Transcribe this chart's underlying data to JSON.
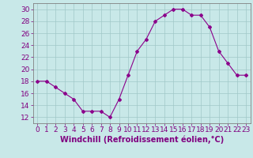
{
  "x": [
    0,
    1,
    2,
    3,
    4,
    5,
    6,
    7,
    8,
    9,
    10,
    11,
    12,
    13,
    14,
    15,
    16,
    17,
    18,
    19,
    20,
    21,
    22,
    23
  ],
  "y": [
    18,
    18,
    17,
    16,
    15,
    13,
    13,
    13,
    12,
    15,
    19,
    23,
    25,
    28,
    29,
    30,
    30,
    29,
    29,
    27,
    23,
    21,
    19,
    19
  ],
  "line_color": "#8B008B",
  "marker": "D",
  "marker_size": 2,
  "bg_color": "#c8e8e8",
  "grid_color": "#a0c8c8",
  "xlabel": "Windchill (Refroidissement éolien,°C)",
  "xlabel_fontsize": 7,
  "ylim": [
    11,
    31
  ],
  "xlim": [
    -0.5,
    23.5
  ],
  "yticks": [
    12,
    14,
    16,
    18,
    20,
    22,
    24,
    26,
    28,
    30
  ],
  "xticks": [
    0,
    1,
    2,
    3,
    4,
    5,
    6,
    7,
    8,
    9,
    10,
    11,
    12,
    13,
    14,
    15,
    16,
    17,
    18,
    19,
    20,
    21,
    22,
    23
  ],
  "tick_label_fontsize": 6.5,
  "tick_color": "#800080",
  "axis_color": "#808080"
}
